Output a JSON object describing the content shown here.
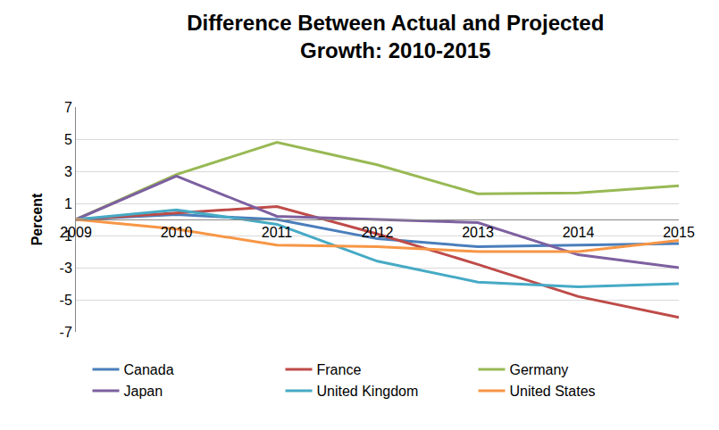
{
  "chart_data": {
    "type": "line",
    "title": "Difference Between Actual and Projected\nGrowth: 2010-2015",
    "y_label": "Percent",
    "categories": [
      "2009",
      "2010",
      "2011",
      "2012",
      "2013",
      "2014",
      "2015"
    ],
    "series": [
      {
        "name": "Canada",
        "color": "#4a7ebb",
        "values": [
          0,
          0.3,
          0.0,
          -1.2,
          -1.7,
          -1.6,
          -1.5
        ]
      },
      {
        "name": "France",
        "color": "#be4b48",
        "values": [
          0,
          0.4,
          0.8,
          -0.9,
          -2.8,
          -4.8,
          -6.1
        ]
      },
      {
        "name": "Germany",
        "color": "#98b954",
        "values": [
          0,
          2.8,
          4.8,
          3.4,
          1.6,
          1.65,
          2.1
        ]
      },
      {
        "name": "Japan",
        "color": "#7d60a0",
        "values": [
          0,
          2.7,
          0.2,
          0.0,
          -0.2,
          -2.2,
          -3.0
        ]
      },
      {
        "name": "United Kingdom",
        "color": "#46aac5",
        "values": [
          0,
          0.6,
          -0.3,
          -2.6,
          -3.9,
          -4.2,
          -4.0
        ]
      },
      {
        "name": "United States",
        "color": "#f79646",
        "values": [
          0,
          -0.6,
          -1.6,
          -1.7,
          -2.0,
          -2.0,
          -1.3
        ]
      }
    ],
    "ylim": [
      -7,
      7
    ],
    "yticks": [
      -7,
      -5,
      -3,
      -1,
      1,
      3,
      5,
      7
    ],
    "grid": true,
    "legend": "bottom"
  }
}
